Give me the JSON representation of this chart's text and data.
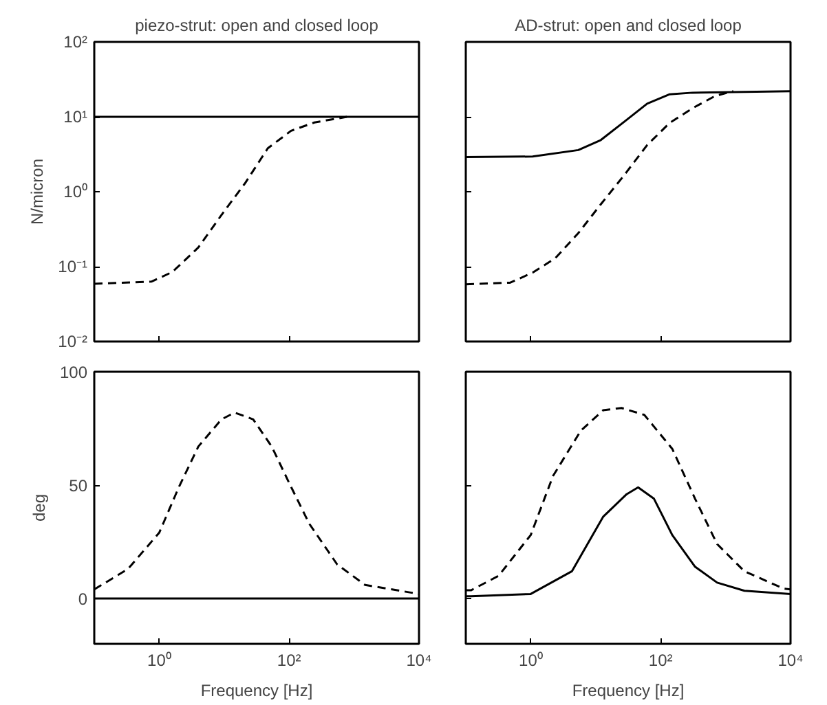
{
  "chart_data": [
    {
      "type": "line",
      "title": "piezo-strut: open and closed loop",
      "ylabel": "N/micron",
      "log": "xy",
      "xlim": [
        0.1,
        10000
      ],
      "xticks": [
        1,
        100,
        10000
      ],
      "ylim": [
        0.01,
        100
      ],
      "yticks": [
        {
          "value": 0.01,
          "label": "10⁻²"
        },
        {
          "value": 0.1,
          "label": "10⁻¹"
        },
        {
          "value": 1,
          "label": "10⁰"
        },
        {
          "value": 10,
          "label": "10¹"
        },
        {
          "value": 100,
          "label": "10²"
        }
      ],
      "tick_labels": "y",
      "grid": false,
      "series": [
        {
          "color": "#000000",
          "line_style": "solid",
          "x": [
            0.1,
            10000
          ],
          "values": [
            10,
            10
          ]
        },
        {
          "color": "#000000",
          "line_style": "dashed",
          "x": [
            0.1,
            0.76,
            1.6,
            4,
            9.1,
            21,
            47,
            107,
            245,
            776
          ],
          "values": [
            0.059,
            0.063,
            0.085,
            0.18,
            0.49,
            1.3,
            3.8,
            6.5,
            8.4,
            10
          ]
        }
      ]
    },
    {
      "type": "line",
      "title": "AD-strut: open and closed loop",
      "log": "xy",
      "xlim": [
        0.1,
        10000
      ],
      "xticks": [
        1,
        100,
        10000
      ],
      "ylim": [
        0.01,
        100
      ],
      "yticks": [
        0.01,
        0.1,
        1,
        10,
        100
      ],
      "tick_labels": false,
      "grid": false,
      "series": [
        {
          "color": "#000000",
          "line_style": "solid",
          "x": [
            0.1,
            1.07,
            5.4,
            12,
            28,
            62,
            138,
            309,
            10000
          ],
          "values": [
            2.9,
            2.95,
            3.6,
            4.9,
            8.7,
            15,
            20,
            21,
            22
          ]
        },
        {
          "color": "#000000",
          "line_style": "dashed",
          "x": [
            0.1,
            0.48,
            1.07,
            2.4,
            5.4,
            12,
            28,
            62,
            138,
            309,
            692,
            1318
          ],
          "values": [
            0.058,
            0.061,
            0.083,
            0.13,
            0.28,
            0.68,
            1.7,
            4.2,
            8.3,
            13,
            19,
            22
          ]
        }
      ]
    },
    {
      "type": "line",
      "xlabel": "Frequency [Hz]",
      "ylabel": "deg",
      "log": "x",
      "xlim": [
        0.1,
        10000
      ],
      "xticks": [
        {
          "value": 1,
          "label": "10⁰"
        },
        {
          "value": 100,
          "label": "10²"
        },
        {
          "value": 10000,
          "label": "10⁴"
        }
      ],
      "ylim": [
        -20,
        100
      ],
      "yticks": [
        0,
        50,
        100
      ],
      "grid": false,
      "series": [
        {
          "color": "#000000",
          "line_style": "solid",
          "x": [
            0.1,
            10000
          ],
          "values": [
            0,
            0
          ]
        },
        {
          "color": "#000000",
          "line_style": "dashed",
          "x": [
            0.1,
            0.33,
            1,
            2.0,
            4,
            9.1,
            14.5,
            28,
            54,
            100,
            204,
            550,
            1479,
            10000
          ],
          "values": [
            4,
            13,
            29,
            49,
            67,
            79,
            82,
            79,
            67,
            51,
            33,
            15,
            6,
            2
          ]
        }
      ]
    },
    {
      "type": "line",
      "xlabel": "Frequency [Hz]",
      "log": "x",
      "xlim": [
        0.1,
        10000
      ],
      "xticks": [
        {
          "value": 1,
          "label": "10⁰"
        },
        {
          "value": 100,
          "label": "10²"
        },
        {
          "value": 10000,
          "label": "10⁴"
        }
      ],
      "ylim": [
        -20,
        100
      ],
      "yticks": [
        0,
        50,
        100
      ],
      "tick_labels": "x",
      "grid": false,
      "series": [
        {
          "color": "#000000",
          "line_style": "solid",
          "x": [
            0.1,
            0.12,
            1,
            4.3,
            13,
            30,
            45,
            79,
            151,
            339,
            741,
            1950,
            10000
          ],
          "values": [
            1,
            1,
            2,
            12,
            36,
            46,
            49,
            44,
            28,
            14,
            7,
            3.4,
            2
          ]
        },
        {
          "color": "#000000",
          "line_style": "dashed",
          "x": [
            0.1,
            0.12,
            0.32,
            1,
            2.2,
            5.9,
            13,
            25,
            56,
            151,
            339,
            741,
            1950,
            7762,
            10000
          ],
          "values": [
            3.6,
            3.6,
            10,
            28,
            54,
            74,
            83,
            84,
            81,
            66,
            44,
            24,
            12,
            4.4,
            4
          ]
        }
      ]
    }
  ]
}
